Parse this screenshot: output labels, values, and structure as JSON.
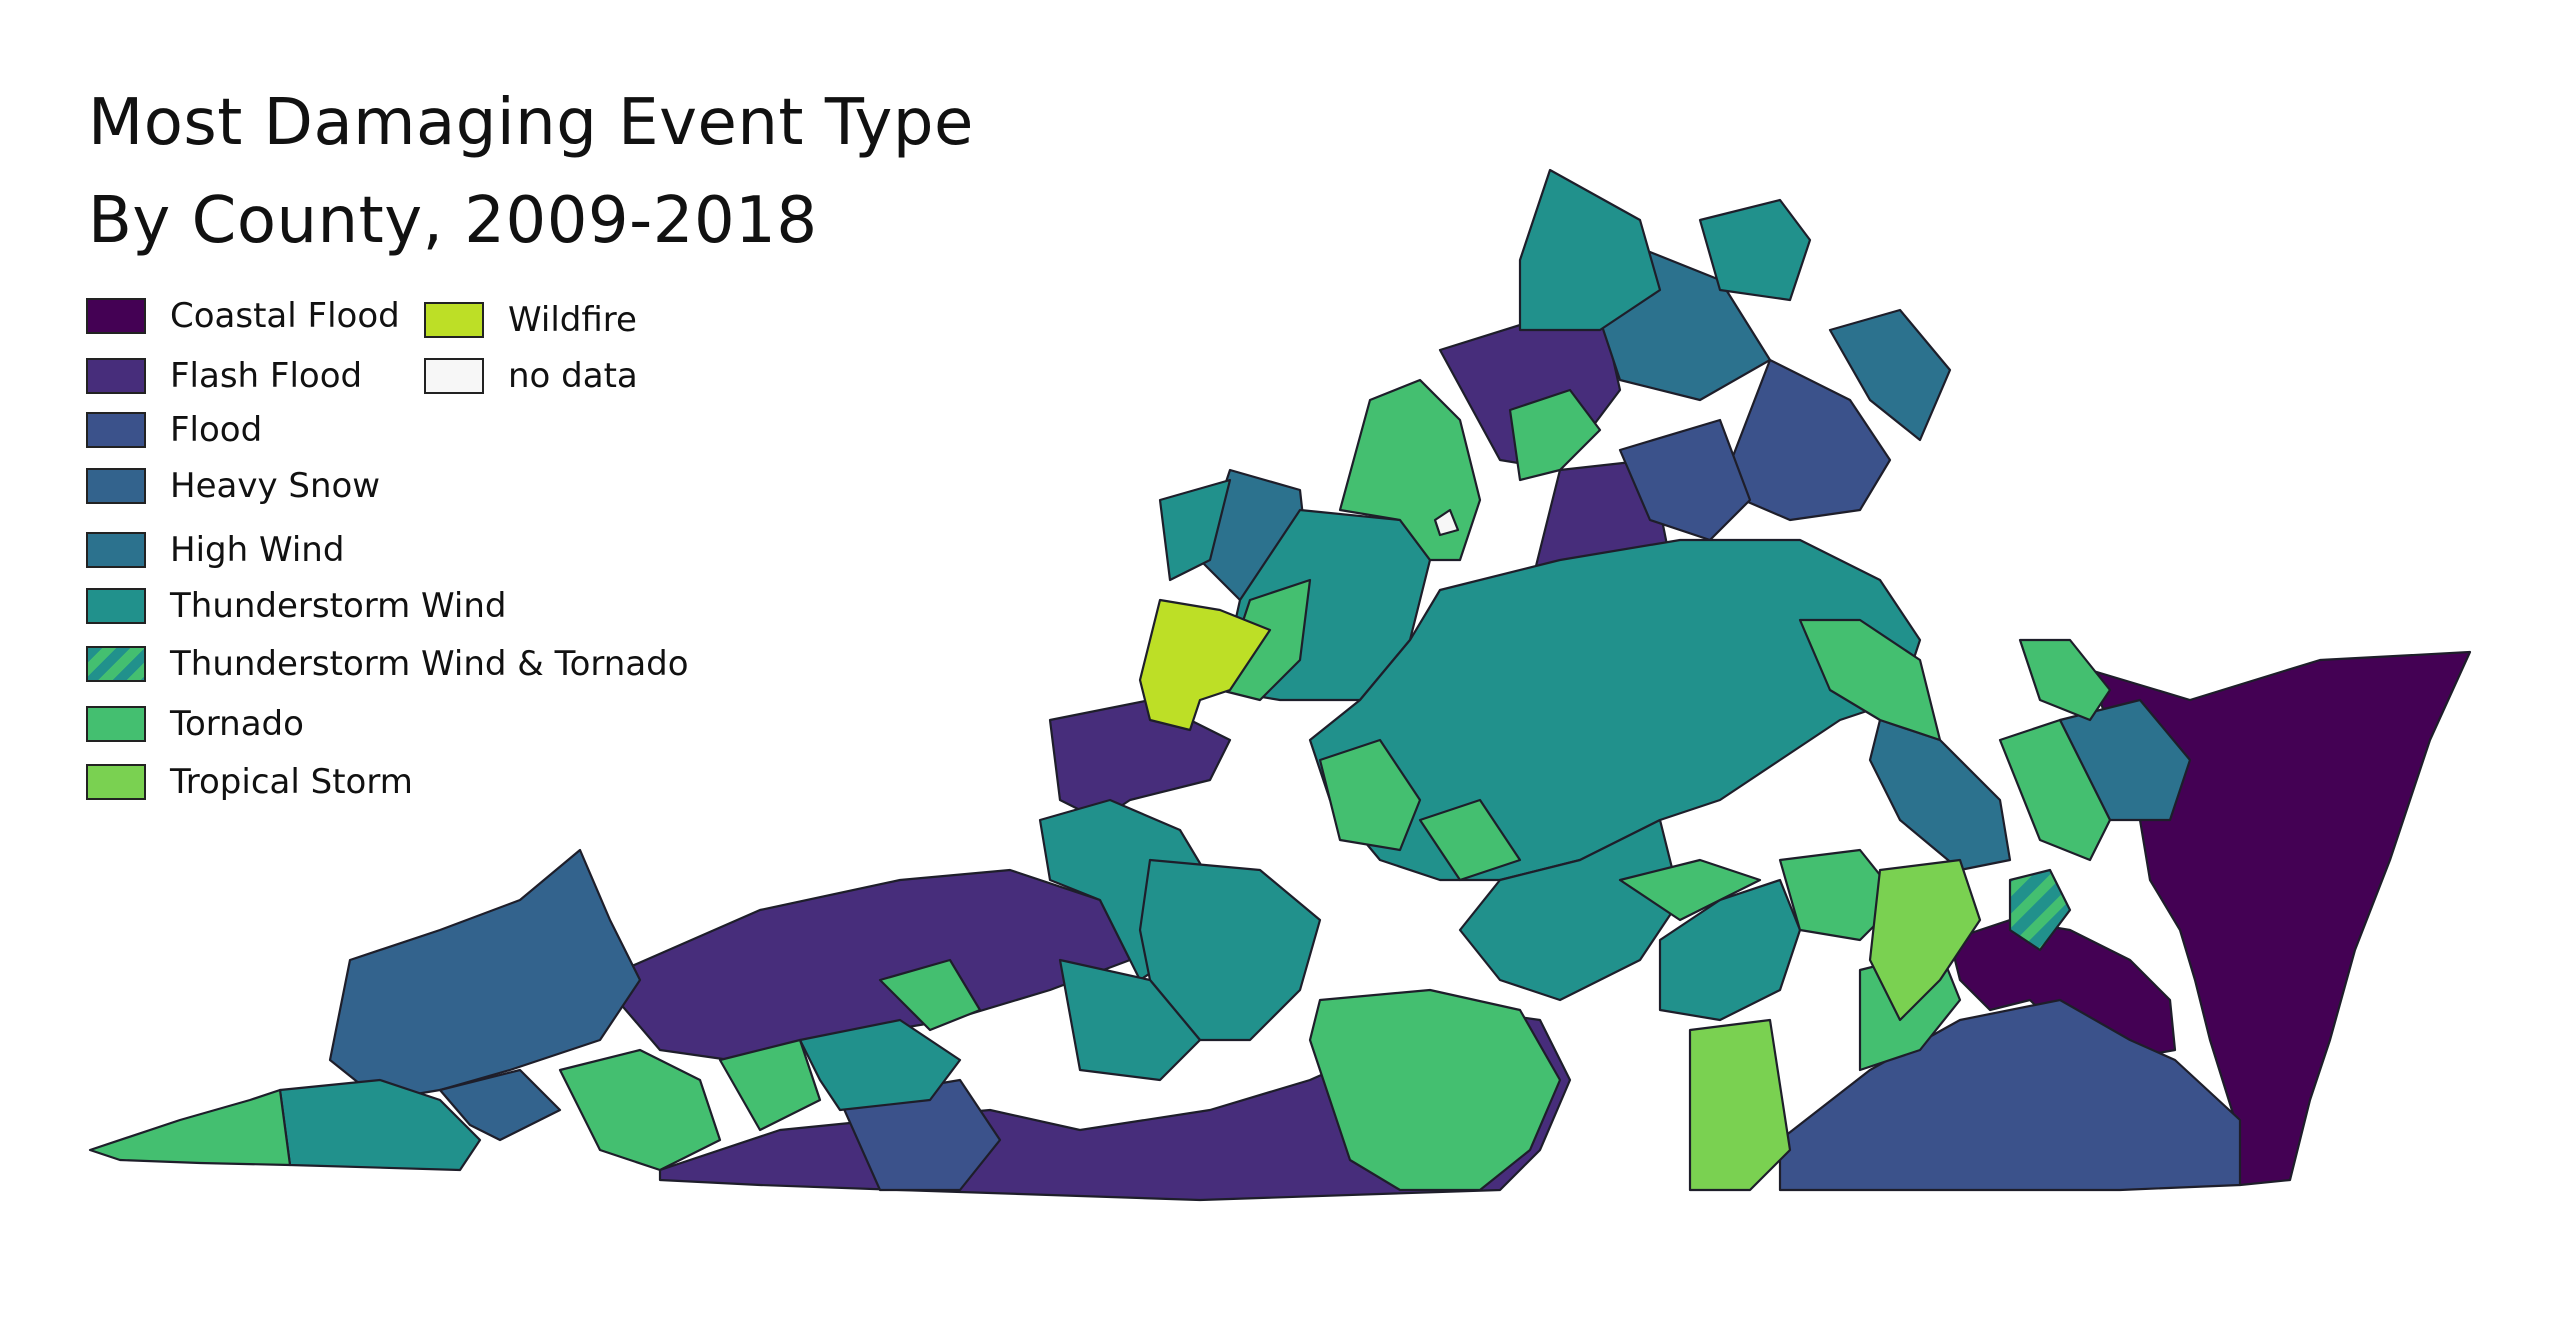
{
  "title": {
    "line1": "Most Damaging Event Type",
    "line2": "By County, 2009-2018"
  },
  "legend": [
    {
      "key": "coastal_flood",
      "label": "Coastal Flood",
      "color": "#440154"
    },
    {
      "key": "flash_flood",
      "label": "Flash Flood",
      "color": "#472d7b"
    },
    {
      "key": "flood",
      "label": "Flood",
      "color": "#3b528b"
    },
    {
      "key": "heavy_snow",
      "label": "Heavy Snow",
      "color": "#33638d"
    },
    {
      "key": "high_wind",
      "label": "High Wind",
      "color": "#2c728e"
    },
    {
      "key": "thunderstorm_wind",
      "label": "Thunderstorm Wind",
      "color": "#21918c"
    },
    {
      "key": "thunderstorm_wind_tornado",
      "label": "Thunderstorm Wind & Tornado",
      "color": "#21918c",
      "pattern_color": "#44bf70",
      "pattern": "diagonal-stripes"
    },
    {
      "key": "tornado",
      "label": "Tornado",
      "color": "#44bf70"
    },
    {
      "key": "tropical_storm",
      "label": "Tropical Storm",
      "color": "#7ad151"
    },
    {
      "key": "wildfire",
      "label": "Wildfire",
      "color": "#bddf26"
    },
    {
      "key": "no_data",
      "label": "no data",
      "color": "#f7f7f7"
    }
  ]
}
